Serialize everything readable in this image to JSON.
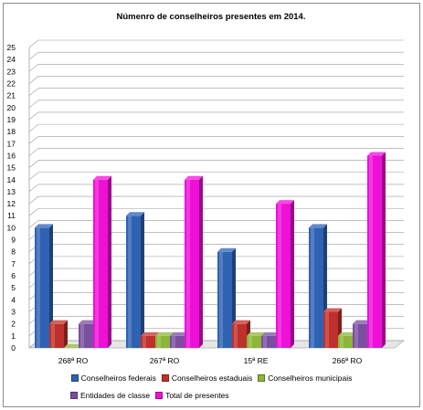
{
  "chart_data": {
    "type": "bar",
    "title": "Númenro de conselheiros presentes em 2014.",
    "categories": [
      "268ª RO",
      "267ª RO",
      "15ª RE",
      "266ª RO"
    ],
    "series": [
      {
        "name": "Conselheiros federais",
        "color": "#2e63b3",
        "values": [
          10,
          11,
          8,
          10
        ]
      },
      {
        "name": "Conselheiros estaduais",
        "color": "#c0302a",
        "values": [
          2,
          1,
          2,
          3
        ]
      },
      {
        "name": "Conselheiros municipais",
        "color": "#8db538",
        "values": [
          0,
          1,
          1,
          1
        ]
      },
      {
        "name": "Entidades de classe",
        "color": "#7a4fa0",
        "values": [
          2,
          1,
          1,
          2
        ]
      },
      {
        "name": "Total de presentes",
        "color": "#ee10d6",
        "values": [
          14,
          14,
          12,
          16
        ]
      }
    ],
    "ylim": [
      0,
      25
    ],
    "yticks": [
      "0",
      "1",
      "2",
      "3",
      "4",
      "5",
      "6",
      "7",
      "8",
      "9",
      "10",
      "11",
      "12",
      "13",
      "14",
      "15",
      "16",
      "17",
      "18",
      "19",
      "20",
      "21",
      "22",
      "23",
      "24",
      "25"
    ],
    "grid": true,
    "legend_position": "bottom"
  }
}
